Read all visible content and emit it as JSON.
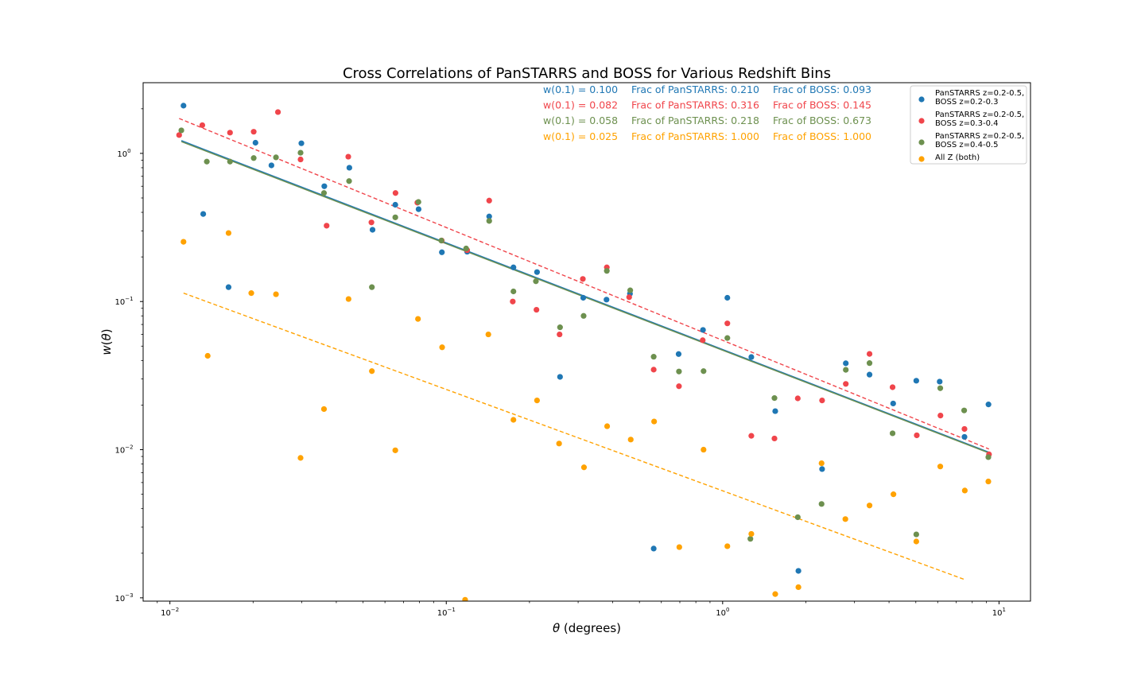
{
  "chart_data": {
    "type": "scatter",
    "title": "Cross Correlations of PanSTARRS and BOSS for Various Redshift Bins",
    "xlabel": "θ (degrees)",
    "ylabel": "w(θ)",
    "xscale": "log",
    "yscale": "log",
    "xlim": [
      0.008,
      13
    ],
    "ylim": [
      0.00095,
      3.0
    ],
    "x_tick_labels": [
      {
        "base": "10",
        "exp": "−2",
        "value": 0.01
      },
      {
        "base": "10",
        "exp": "−1",
        "value": 0.1
      },
      {
        "base": "10",
        "exp": "0",
        "value": 1
      },
      {
        "base": "10",
        "exp": "1",
        "value": 10
      }
    ],
    "y_tick_labels": [
      {
        "base": "10",
        "exp": "−3",
        "value": 0.001
      },
      {
        "base": "10",
        "exp": "−2",
        "value": 0.01
      },
      {
        "base": "10",
        "exp": "−1",
        "value": 0.1
      },
      {
        "base": "10",
        "exp": "0",
        "value": 1
      }
    ],
    "grid": false,
    "legend_position": "top-right",
    "series": [
      {
        "name": "PanSTARRS z=0.2-0.5,\nBOSS z=0.2-0.3",
        "legend_lines": [
          "PanSTARRS z=0.2-0.5,",
          "BOSS z=0.2-0.3"
        ],
        "color": "#1f77b4",
        "marker": "circle",
        "points": [
          [
            0.0112,
            2.1
          ],
          [
            0.0132,
            0.39
          ],
          [
            0.0163,
            0.125
          ],
          [
            0.0204,
            1.18
          ],
          [
            0.0233,
            0.83
          ],
          [
            0.0299,
            1.17
          ],
          [
            0.0362,
            0.6
          ],
          [
            0.0446,
            0.8
          ],
          [
            0.0541,
            0.305
          ],
          [
            0.0654,
            0.45
          ],
          [
            0.0794,
            0.42
          ],
          [
            0.0964,
            0.215
          ],
          [
            0.119,
            0.217
          ],
          [
            0.143,
            0.375
          ],
          [
            0.175,
            0.17
          ],
          [
            0.213,
            0.158
          ],
          [
            0.258,
            0.031
          ],
          [
            0.313,
            0.106
          ],
          [
            0.38,
            0.103
          ],
          [
            0.462,
            0.113
          ],
          [
            0.563,
            0.00215
          ],
          [
            0.693,
            0.0442
          ],
          [
            0.849,
            0.0643
          ],
          [
            1.04,
            0.106
          ],
          [
            1.27,
            0.0422
          ],
          [
            1.55,
            0.0182
          ],
          [
            1.88,
            0.00152
          ],
          [
            2.29,
            0.0074
          ],
          [
            2.79,
            0.0383
          ],
          [
            3.4,
            0.0321
          ],
          [
            4.14,
            0.0205
          ],
          [
            5.02,
            0.0292
          ],
          [
            6.1,
            0.0288
          ],
          [
            7.5,
            0.0122
          ],
          [
            9.16,
            0.0202
          ]
        ],
        "fit": {
          "x": [
            0.011,
            9.2
          ],
          "y": [
            1.22,
            0.0096
          ],
          "style": "solid"
        },
        "annotation": {
          "w01": "w(0.1) = 0.100",
          "frac_panstarrs": "Frac of PanSTARRS: 0.210",
          "frac_boss": "Frac of BOSS: 0.093"
        }
      },
      {
        "name": "PanSTARRS z=0.2-0.5,\nBOSS z=0.3-0.4",
        "legend_lines": [
          "PanSTARRS z=0.2-0.5,",
          "BOSS z=0.3-0.4"
        ],
        "color": "#f0454b",
        "marker": "circle",
        "points": [
          [
            0.0108,
            1.33
          ],
          [
            0.0131,
            1.55
          ],
          [
            0.0165,
            1.38
          ],
          [
            0.0201,
            1.4
          ],
          [
            0.0246,
            1.9
          ],
          [
            0.0297,
            0.91
          ],
          [
            0.0369,
            0.325
          ],
          [
            0.0442,
            0.95
          ],
          [
            0.0536,
            0.342
          ],
          [
            0.0655,
            0.54
          ],
          [
            0.0786,
            0.465
          ],
          [
            0.0963,
            0.258
          ],
          [
            0.119,
            0.222
          ],
          [
            0.143,
            0.48
          ],
          [
            0.174,
            0.1
          ],
          [
            0.212,
            0.088
          ],
          [
            0.257,
            0.06
          ],
          [
            0.312,
            0.142
          ],
          [
            0.381,
            0.17
          ],
          [
            0.459,
            0.107
          ],
          [
            0.563,
            0.0347
          ],
          [
            0.695,
            0.0268
          ],
          [
            0.847,
            0.0548
          ],
          [
            1.04,
            0.0712
          ],
          [
            1.27,
            0.0124
          ],
          [
            1.54,
            0.0119
          ],
          [
            1.87,
            0.0222
          ],
          [
            2.29,
            0.0215
          ],
          [
            2.79,
            0.0278
          ],
          [
            3.4,
            0.0443
          ],
          [
            4.12,
            0.0264
          ],
          [
            5.04,
            0.0125
          ],
          [
            6.14,
            0.017
          ],
          [
            7.5,
            0.0138
          ],
          [
            9.2,
            0.0093
          ]
        ],
        "fit": {
          "x": [
            0.0108,
            9.2
          ],
          "y": [
            1.72,
            0.0101
          ],
          "style": "dashed"
        },
        "annotation": {
          "w01": "w(0.1) = 0.082",
          "frac_panstarrs": "Frac of PanSTARRS: 0.316",
          "frac_boss": "Frac of BOSS: 0.145"
        }
      },
      {
        "name": "PanSTARRS z=0.2-0.5,\nBOSS z=0.4-0.5",
        "legend_lines": [
          "PanSTARRS z=0.2-0.5,",
          "BOSS z=0.4-0.5"
        ],
        "color": "#6d904f",
        "marker": "circle",
        "points": [
          [
            0.011,
            1.43
          ],
          [
            0.0136,
            0.88
          ],
          [
            0.0165,
            0.88
          ],
          [
            0.0201,
            0.93
          ],
          [
            0.0242,
            0.94
          ],
          [
            0.0297,
            1.01
          ],
          [
            0.0361,
            0.54
          ],
          [
            0.0445,
            0.65
          ],
          [
            0.0538,
            0.125
          ],
          [
            0.0654,
            0.37
          ],
          [
            0.0793,
            0.47
          ],
          [
            0.096,
            0.258
          ],
          [
            0.118,
            0.228
          ],
          [
            0.143,
            0.35
          ],
          [
            0.175,
            0.117
          ],
          [
            0.211,
            0.137
          ],
          [
            0.258,
            0.067
          ],
          [
            0.314,
            0.08
          ],
          [
            0.381,
            0.161
          ],
          [
            0.463,
            0.119
          ],
          [
            0.563,
            0.0424
          ],
          [
            0.695,
            0.0337
          ],
          [
            0.853,
            0.0339
          ],
          [
            1.04,
            0.0567
          ],
          [
            1.26,
            0.0025
          ],
          [
            1.54,
            0.0223
          ],
          [
            1.87,
            0.0035
          ],
          [
            2.28,
            0.0043
          ],
          [
            2.79,
            0.0346
          ],
          [
            3.4,
            0.0384
          ],
          [
            4.12,
            0.0129
          ],
          [
            5.02,
            0.00268
          ],
          [
            6.13,
            0.026
          ],
          [
            7.48,
            0.0184
          ],
          [
            9.15,
            0.0089
          ]
        ],
        "fit": {
          "x": [
            0.011,
            9.2
          ],
          "y": [
            1.2,
            0.0095
          ],
          "style": "solid"
        },
        "annotation": {
          "w01": "w(0.1) = 0.058",
          "frac_panstarrs": "Frac of PanSTARRS: 0.218",
          "frac_boss": "Frac of BOSS: 0.673"
        }
      },
      {
        "name": "All Z (both)",
        "legend_lines": [
          "All Z (both)"
        ],
        "color": "#ffa200",
        "marker": "circle",
        "points": [
          [
            0.0112,
            0.253
          ],
          [
            0.0137,
            0.043
          ],
          [
            0.0163,
            0.29
          ],
          [
            0.0197,
            0.114
          ],
          [
            0.0242,
            0.112
          ],
          [
            0.0297,
            0.0088
          ],
          [
            0.0361,
            0.0188
          ],
          [
            0.0443,
            0.104
          ],
          [
            0.0538,
            0.0339
          ],
          [
            0.0654,
            0.0099
          ],
          [
            0.079,
            0.0763
          ],
          [
            0.0966,
            0.0491
          ],
          [
            0.117,
            0.00097
          ],
          [
            0.142,
            0.06
          ],
          [
            0.175,
            0.0159
          ],
          [
            0.213,
            0.0215
          ],
          [
            0.256,
            0.011
          ],
          [
            0.315,
            0.0076
          ],
          [
            0.382,
            0.0144
          ],
          [
            0.465,
            0.0117
          ],
          [
            0.565,
            0.0155
          ],
          [
            0.697,
            0.0022
          ],
          [
            0.853,
            0.01
          ],
          [
            1.04,
            0.00223
          ],
          [
            1.27,
            0.0027
          ],
          [
            1.55,
            0.00106
          ],
          [
            1.88,
            0.00118
          ],
          [
            2.28,
            0.0081
          ],
          [
            2.78,
            0.0034
          ],
          [
            3.4,
            0.0042
          ],
          [
            4.15,
            0.005
          ],
          [
            5.02,
            0.0024
          ],
          [
            6.13,
            0.0077
          ],
          [
            7.52,
            0.0053
          ],
          [
            9.15,
            0.0061
          ]
        ],
        "fit": {
          "x": [
            0.0112,
            7.5
          ],
          "y": [
            0.114,
            0.00133
          ],
          "style": "dashed"
        },
        "annotation": {
          "w01": "w(0.1) = 0.025",
          "frac_panstarrs": "Frac of PanSTARRS: 1.000",
          "frac_boss": "Frac of BOSS: 1.000"
        }
      }
    ]
  }
}
